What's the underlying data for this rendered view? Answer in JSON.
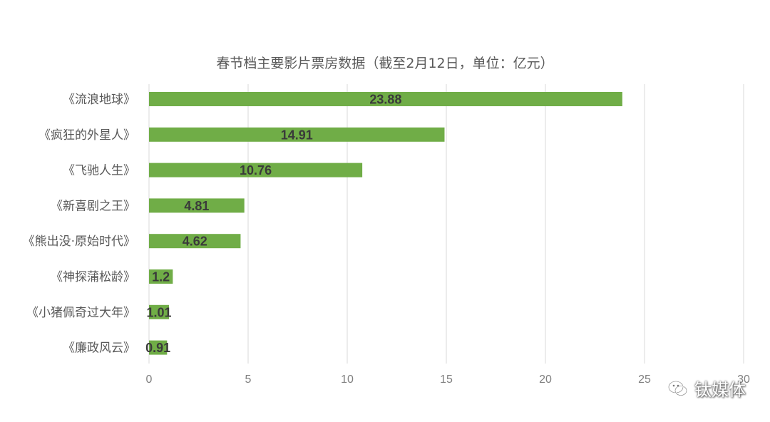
{
  "chart_data": {
    "type": "bar",
    "orientation": "horizontal",
    "title": "春节档主要影片票房数据（截至2月12日，单位：亿元）",
    "categories": [
      "《流浪地球》",
      "《疯狂的外星人》",
      "《飞驰人生》",
      "《新喜剧之王》",
      "《熊出没·原始时代》",
      "《神探蒲松龄》",
      "《小猪佩奇过大年》",
      "《廉政风云》"
    ],
    "values": [
      23.88,
      14.91,
      10.76,
      4.81,
      4.62,
      1.2,
      1.01,
      0.91
    ],
    "data_labels": [
      "23.88",
      "14.91",
      "10.76",
      "4.81",
      "4.62",
      "1.2",
      "1.01",
      "0.91"
    ],
    "xlim": [
      0,
      30
    ],
    "x_ticks": [
      0,
      5,
      10,
      15,
      20,
      25,
      30
    ],
    "x_tick_labels": [
      "0",
      "5",
      "10",
      "15",
      "20",
      "25",
      "30"
    ],
    "grid": "vertical",
    "bar_color": "#70ad47",
    "gridline_color": "#d9d9d9",
    "legend": "none"
  },
  "watermark": {
    "text": "钛媒体",
    "icon": "wechat-icon"
  }
}
